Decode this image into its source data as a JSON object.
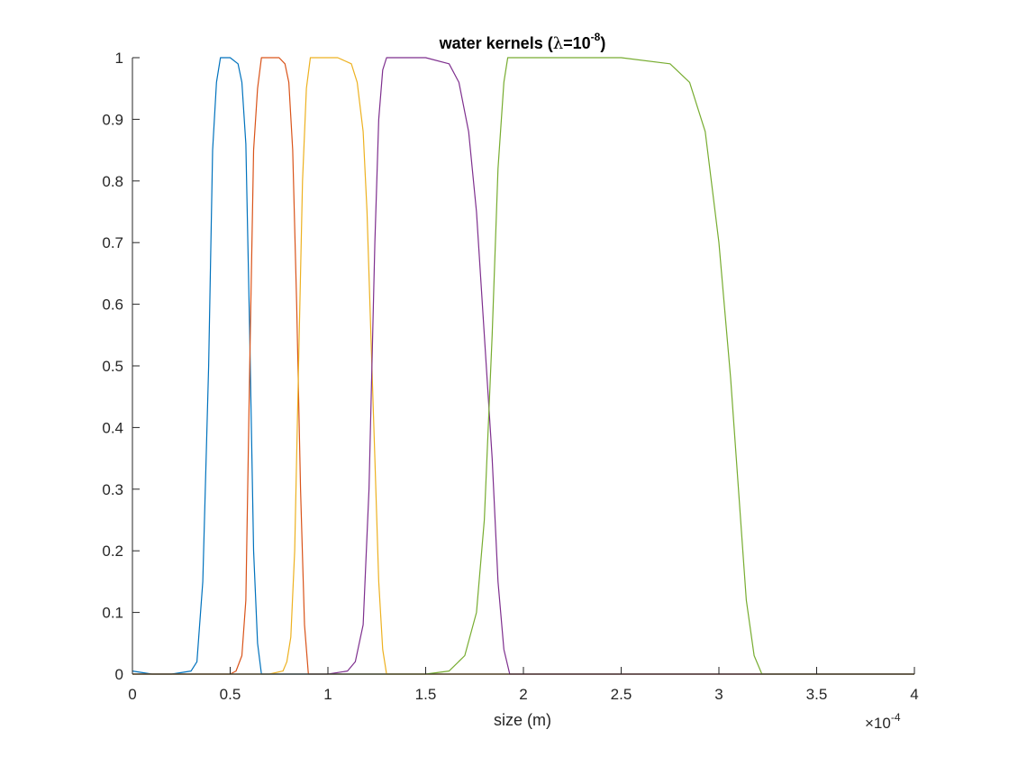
{
  "chart_data": {
    "type": "line",
    "title": {
      "prefix": "water kernels (",
      "symbol": "λ",
      "equals": "=10",
      "exponent": "-8",
      "suffix": ")"
    },
    "xlabel": "size (m)",
    "ylabel": "",
    "x_multiplier": {
      "base": "×10",
      "exponent": "-4"
    },
    "xlim": [
      0,
      4
    ],
    "ylim": [
      0,
      1
    ],
    "xticks": [
      0,
      0.5,
      1,
      1.5,
      2,
      2.5,
      3,
      3.5,
      4
    ],
    "xtick_labels": [
      "0",
      "0.5",
      "1",
      "1.5",
      "2",
      "2.5",
      "3",
      "3.5",
      "4"
    ],
    "yticks": [
      0,
      0.1,
      0.2,
      0.3,
      0.4,
      0.5,
      0.6,
      0.7,
      0.8,
      0.9,
      1
    ],
    "ytick_labels": [
      "0",
      "0.1",
      "0.2",
      "0.3",
      "0.4",
      "0.5",
      "0.6",
      "0.7",
      "0.8",
      "0.9",
      "1"
    ],
    "grid": false,
    "series": [
      {
        "color": "#0072BD",
        "x": [
          0,
          0.1,
          0.2,
          0.3,
          0.33,
          0.36,
          0.39,
          0.41,
          0.43,
          0.45,
          0.5,
          0.54,
          0.56,
          0.58,
          0.6,
          0.62,
          0.64,
          0.66,
          1.0,
          4.0
        ],
        "y": [
          0.005,
          0.0,
          0.0,
          0.005,
          0.02,
          0.15,
          0.5,
          0.85,
          0.96,
          1.0,
          1.0,
          0.99,
          0.96,
          0.86,
          0.55,
          0.2,
          0.05,
          0.0,
          0.0,
          0.0
        ]
      },
      {
        "color": "#D95319",
        "x": [
          0,
          0.4,
          0.5,
          0.53,
          0.56,
          0.58,
          0.6,
          0.62,
          0.64,
          0.66,
          0.7,
          0.75,
          0.78,
          0.8,
          0.82,
          0.84,
          0.86,
          0.88,
          0.9,
          4.0
        ],
        "y": [
          0.0,
          0.0,
          0.0,
          0.005,
          0.03,
          0.12,
          0.5,
          0.85,
          0.95,
          1.0,
          1.0,
          1.0,
          0.99,
          0.96,
          0.85,
          0.6,
          0.3,
          0.08,
          0.0,
          0.0
        ]
      },
      {
        "color": "#EDB120",
        "x": [
          0,
          0.7,
          0.77,
          0.79,
          0.81,
          0.83,
          0.85,
          0.87,
          0.89,
          0.91,
          1.05,
          1.12,
          1.15,
          1.18,
          1.2,
          1.22,
          1.24,
          1.26,
          1.28,
          1.3,
          4.0
        ],
        "y": [
          0.0,
          0.0,
          0.005,
          0.02,
          0.06,
          0.2,
          0.5,
          0.8,
          0.95,
          1.0,
          1.0,
          0.99,
          0.96,
          0.88,
          0.75,
          0.55,
          0.35,
          0.15,
          0.04,
          0.0,
          0.0
        ]
      },
      {
        "color": "#7E2F8E",
        "x": [
          0,
          1.0,
          1.1,
          1.14,
          1.18,
          1.21,
          1.24,
          1.26,
          1.28,
          1.3,
          1.5,
          1.62,
          1.67,
          1.72,
          1.76,
          1.8,
          1.84,
          1.87,
          1.9,
          1.93,
          4.0
        ],
        "y": [
          0.0,
          0.0,
          0.005,
          0.02,
          0.08,
          0.3,
          0.7,
          0.9,
          0.98,
          1.0,
          1.0,
          0.99,
          0.96,
          0.88,
          0.75,
          0.55,
          0.35,
          0.15,
          0.04,
          0.0,
          0.0
        ]
      },
      {
        "color": "#77AC30",
        "x": [
          0,
          1.5,
          1.62,
          1.7,
          1.76,
          1.8,
          1.84,
          1.87,
          1.9,
          1.92,
          2.5,
          2.75,
          2.85,
          2.93,
          3.0,
          3.06,
          3.1,
          3.14,
          3.18,
          3.22,
          4.0
        ],
        "y": [
          0.0,
          0.0,
          0.005,
          0.03,
          0.1,
          0.25,
          0.55,
          0.82,
          0.96,
          1.0,
          1.0,
          0.99,
          0.96,
          0.88,
          0.7,
          0.48,
          0.3,
          0.12,
          0.03,
          0.0,
          0.0
        ]
      }
    ]
  }
}
